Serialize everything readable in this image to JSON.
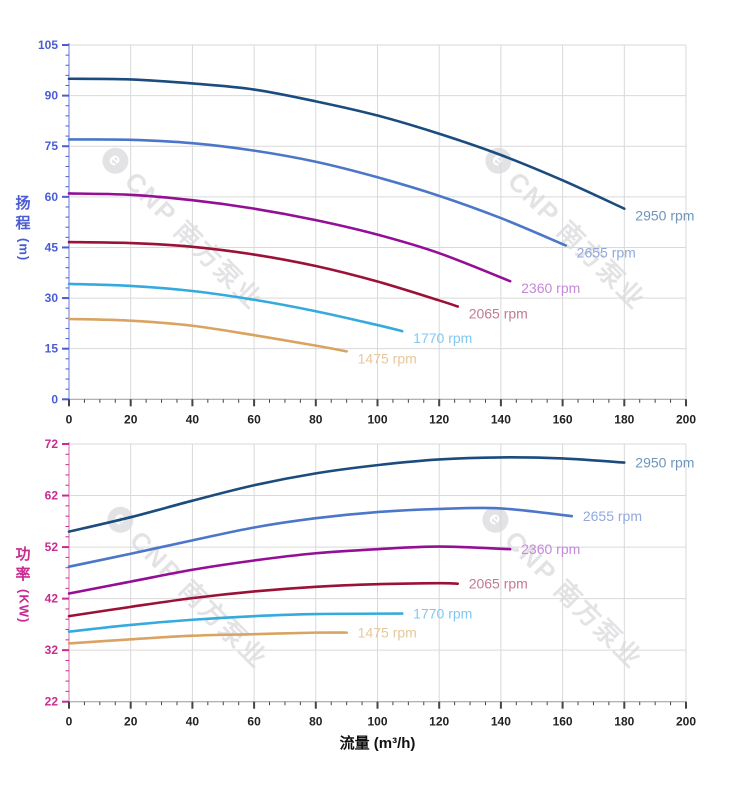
{
  "axes": {
    "head": {
      "chars": [
        "扬",
        "程"
      ],
      "unit": "(m)",
      "color": "#4a5cd4",
      "spine_color": "#a0abe6"
    },
    "power": {
      "chars": [
        "功",
        "率"
      ],
      "unit": "(KW)",
      "color": "#c92b90",
      "spine_color": "#e5a3cd"
    },
    "flow": {
      "title": "流量 (m³/h)",
      "color": "#111111"
    }
  },
  "watermark": {
    "text": "CNP 南方泵业",
    "logo_char": "e"
  },
  "style": {
    "grid_color": "#d9d9d9",
    "x_tick_color": "#444444",
    "x_tick_label_color": "#222222",
    "bottom_spine_color": "#999999"
  },
  "chart_data": [
    {
      "type": "line",
      "panel": "head",
      "title": "",
      "xlabel": "流量 (m³/h)",
      "ylabel": "扬程 (m)",
      "xlim": [
        0,
        200
      ],
      "ylim": [
        0,
        105
      ],
      "grid": true,
      "x_ticks": [
        0,
        20,
        40,
        60,
        80,
        100,
        120,
        140,
        160,
        180,
        200
      ],
      "y_ticks": [
        0,
        15,
        30,
        45,
        60,
        75,
        90,
        105
      ],
      "x_minor": 5,
      "y_minor": 3,
      "legend_position": "curve-end-labels",
      "series": [
        {
          "name": "2950 rpm",
          "label": "2950 rpm",
          "color": "#1b4c7d",
          "label_color": "#6e95ba",
          "x": [
            0,
            20,
            40,
            60,
            80,
            100,
            120,
            140,
            160,
            180
          ],
          "y": [
            95,
            94.8,
            93.6,
            91.8,
            88.3,
            84.1,
            78.7,
            72.4,
            64.9,
            56.5
          ]
        },
        {
          "name": "2655 rpm",
          "label": "2655 rpm",
          "color": "#4c77c9",
          "label_color": "#91a9de",
          "x": [
            0,
            20,
            40,
            60,
            80,
            100,
            120,
            140,
            161
          ],
          "y": [
            77,
            76.9,
            75.9,
            73.7,
            70.4,
            65.8,
            60.3,
            53.7,
            45.6
          ]
        },
        {
          "name": "2360 rpm",
          "label": "2360 rpm",
          "color": "#930f96",
          "label_color": "#c489d8",
          "x": [
            0,
            20,
            40,
            60,
            80,
            100,
            120,
            143
          ],
          "y": [
            61,
            60.6,
            59,
            56.5,
            53.1,
            48.8,
            43.3,
            35
          ]
        },
        {
          "name": "2065 rpm",
          "label": "2065 rpm",
          "color": "#9a1238",
          "label_color": "#c27b90",
          "x": [
            0,
            20,
            40,
            60,
            80,
            100,
            120,
            126
          ],
          "y": [
            46.6,
            46.3,
            45.2,
            42.9,
            39.5,
            34.9,
            29.3,
            27.5
          ]
        },
        {
          "name": "1770 rpm",
          "label": "1770 rpm",
          "color": "#35aadf",
          "label_color": "#82c8ee",
          "x": [
            0,
            20,
            40,
            60,
            80,
            100,
            108
          ],
          "y": [
            34.2,
            33.6,
            32.1,
            29.5,
            26.1,
            22,
            20.2
          ]
        },
        {
          "name": "1475 rpm",
          "label": "1475 rpm",
          "color": "#d9a362",
          "label_color": "#e6c89e",
          "x": [
            0,
            20,
            40,
            60,
            80,
            90
          ],
          "y": [
            23.8,
            23.3,
            21.8,
            19,
            15.9,
            14.2
          ]
        }
      ]
    },
    {
      "type": "line",
      "panel": "power",
      "title": "",
      "xlabel": "流量 (m³/h)",
      "ylabel": "功率 (KW)",
      "xlim": [
        0,
        200
      ],
      "ylim": [
        22,
        72
      ],
      "grid": true,
      "x_ticks": [
        0,
        20,
        40,
        60,
        80,
        100,
        120,
        140,
        160,
        180,
        200
      ],
      "y_ticks": [
        22,
        32,
        42,
        52,
        62,
        72
      ],
      "x_minor": 5,
      "y_minor": 2,
      "legend_position": "curve-end-labels",
      "series": [
        {
          "name": "2950 rpm",
          "label": "2950 rpm",
          "color": "#1b4c7d",
          "label_color": "#6e95ba",
          "x": [
            0,
            20,
            40,
            60,
            80,
            100,
            120,
            140,
            160,
            180
          ],
          "y": [
            55,
            57.8,
            61,
            64,
            66.3,
            67.9,
            69,
            69.4,
            69.2,
            68.4
          ]
        },
        {
          "name": "2655 rpm",
          "label": "2655 rpm",
          "color": "#4c77c9",
          "label_color": "#91a9de",
          "x": [
            0,
            20,
            40,
            60,
            80,
            100,
            120,
            140,
            163
          ],
          "y": [
            48.2,
            50.7,
            53.3,
            55.8,
            57.6,
            58.8,
            59.4,
            59.5,
            58
          ]
        },
        {
          "name": "2360 rpm",
          "label": "2360 rpm",
          "color": "#930f96",
          "label_color": "#c489d8",
          "x": [
            0,
            20,
            40,
            60,
            80,
            100,
            120,
            143
          ],
          "y": [
            43,
            45.3,
            47.6,
            49.4,
            50.8,
            51.6,
            52.1,
            51.6
          ]
        },
        {
          "name": "2065 rpm",
          "label": "2065 rpm",
          "color": "#9a1238",
          "label_color": "#c27b90",
          "x": [
            0,
            20,
            40,
            60,
            80,
            100,
            120,
            126
          ],
          "y": [
            38.6,
            40.4,
            42.1,
            43.4,
            44.3,
            44.8,
            45,
            44.9
          ]
        },
        {
          "name": "1770 rpm",
          "label": "1770 rpm",
          "color": "#35aadf",
          "label_color": "#82c8ee",
          "x": [
            0,
            20,
            40,
            60,
            80,
            108
          ],
          "y": [
            35.6,
            36.9,
            37.9,
            38.6,
            39,
            39.1
          ]
        },
        {
          "name": "1475 rpm",
          "label": "1475 rpm",
          "color": "#d9a362",
          "label_color": "#e6c89e",
          "x": [
            0,
            20,
            40,
            60,
            80,
            90
          ],
          "y": [
            33.3,
            34.1,
            34.8,
            35.1,
            35.4,
            35.4
          ]
        }
      ]
    }
  ]
}
